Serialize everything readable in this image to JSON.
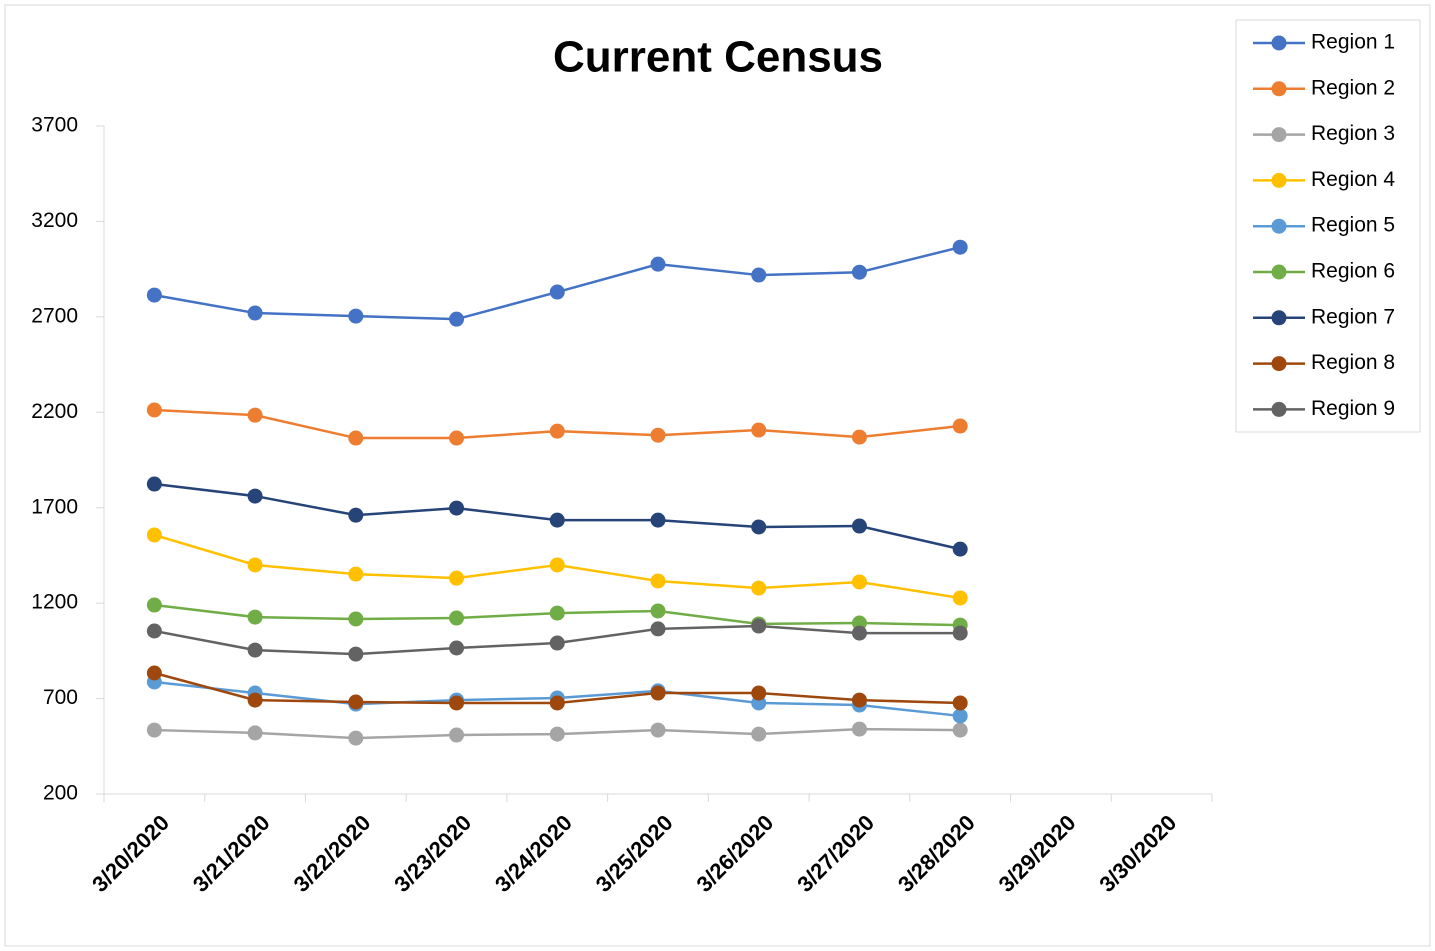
{
  "chart_data": {
    "type": "line",
    "title": "Current Census",
    "categories": [
      "3/20/2020",
      "3/21/2020",
      "3/22/2020",
      "3/23/2020",
      "3/24/2020",
      "3/25/2020",
      "3/26/2020",
      "3/27/2020",
      "3/28/2020",
      "3/29/2020",
      "3/30/2020"
    ],
    "ylim": [
      200,
      3700
    ],
    "yticks": [
      200,
      700,
      1200,
      1700,
      2200,
      2700,
      3200,
      3700
    ],
    "grid": false,
    "legend": "right",
    "series": [
      {
        "name": "Region 1",
        "color": "#4472c4",
        "values": [
          2814,
          2720,
          2704,
          2688,
          2830,
          2976,
          2919,
          2934,
          3065,
          null,
          null
        ]
      },
      {
        "name": "Region 2",
        "color": "#ed7d31",
        "values": [
          2212,
          2185,
          2065,
          2065,
          2101,
          2080,
          2107,
          2070,
          2128,
          null,
          null
        ]
      },
      {
        "name": "Region 3",
        "color": "#a5a5a5",
        "values": [
          535,
          520,
          493,
          509,
          514,
          535,
          514,
          540,
          535,
          null,
          null
        ]
      },
      {
        "name": "Region 4",
        "color": "#ffc000",
        "values": [
          1557,
          1400,
          1352,
          1331,
          1400,
          1316,
          1279,
          1311,
          1227,
          null,
          null
        ]
      },
      {
        "name": "Region 5",
        "color": "#5b9bd5",
        "values": [
          787,
          729,
          671,
          692,
          703,
          740,
          677,
          666,
          609,
          null,
          null
        ]
      },
      {
        "name": "Region 6",
        "color": "#70ad47",
        "values": [
          1190,
          1127,
          1117,
          1122,
          1148,
          1159,
          1091,
          1096,
          1085,
          null,
          null
        ]
      },
      {
        "name": "Region 7",
        "color": "#264478",
        "values": [
          1824,
          1761,
          1661,
          1698,
          1635,
          1635,
          1599,
          1604,
          1483,
          null,
          null
        ]
      },
      {
        "name": "Region 8",
        "color": "#9e480e",
        "values": [
          834,
          692,
          682,
          677,
          677,
          729,
          729,
          692,
          677,
          null,
          null
        ]
      },
      {
        "name": "Region 9",
        "color": "#636363",
        "values": [
          1054,
          954,
          933,
          965,
          991,
          1065,
          1080,
          1043,
          1043,
          null,
          null
        ]
      }
    ]
  }
}
